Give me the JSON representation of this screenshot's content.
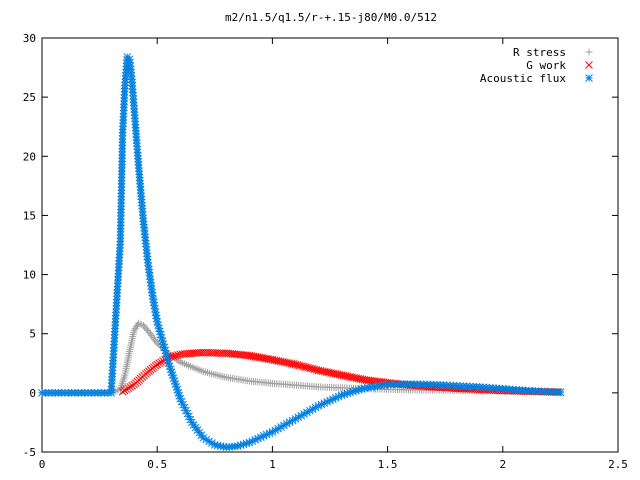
{
  "chart_data": {
    "type": "scatter",
    "title": "m2/n1.5/q1.5/r-+.15-j80/M0.0/512",
    "xlabel": "",
    "ylabel": "",
    "xlim": [
      0,
      2.5
    ],
    "ylim": [
      -5,
      30
    ],
    "x_ticks": [
      "0",
      "0.5",
      "1",
      "1.5",
      "2",
      "2.5"
    ],
    "y_ticks": [
      "-5",
      "0",
      "5",
      "10",
      "15",
      "20",
      "25",
      "30"
    ],
    "x_tick_values": [
      0,
      0.5,
      1,
      1.5,
      2,
      2.5
    ],
    "y_tick_values": [
      -5,
      0,
      5,
      10,
      15,
      20,
      25,
      30
    ],
    "grid": false,
    "legend_position": "top-right",
    "series": [
      {
        "name": "R stress",
        "marker": "plus",
        "color": "#a0a0a0",
        "x": [
          0,
          0.1,
          0.2,
          0.3,
          0.34,
          0.36,
          0.38,
          0.4,
          0.42,
          0.44,
          0.47,
          0.5,
          0.55,
          0.6,
          0.7,
          0.8,
          0.9,
          1.0,
          1.2,
          1.4,
          1.6,
          1.8,
          2.0,
          2.25
        ],
        "y": [
          0,
          0,
          0,
          0,
          0.3,
          1.5,
          3.5,
          5.3,
          5.9,
          5.7,
          5.0,
          4.2,
          3.3,
          2.6,
          1.8,
          1.3,
          1.0,
          0.8,
          0.5,
          0.35,
          0.25,
          0.2,
          0.15,
          0.1
        ]
      },
      {
        "name": "G work",
        "marker": "cross",
        "color": "#ff0000",
        "x": [
          0.35,
          0.4,
          0.45,
          0.5,
          0.55,
          0.6,
          0.65,
          0.7,
          0.8,
          0.9,
          1.0,
          1.1,
          1.2,
          1.3,
          1.4,
          1.5,
          1.6,
          1.7,
          1.8,
          1.9,
          2.0,
          2.1,
          2.25
        ],
        "y": [
          0.1,
          0.7,
          1.6,
          2.4,
          3.0,
          3.25,
          3.35,
          3.4,
          3.35,
          3.15,
          2.8,
          2.4,
          1.9,
          1.5,
          1.1,
          0.85,
          0.65,
          0.5,
          0.38,
          0.28,
          0.2,
          0.13,
          0.05
        ]
      },
      {
        "name": "Acoustic flux",
        "marker": "star",
        "color": "#0080e0",
        "x": [
          0,
          0.1,
          0.2,
          0.3,
          0.34,
          0.35,
          0.36,
          0.37,
          0.38,
          0.39,
          0.4,
          0.42,
          0.44,
          0.46,
          0.48,
          0.5,
          0.55,
          0.6,
          0.65,
          0.7,
          0.75,
          0.8,
          0.85,
          0.9,
          1.0,
          1.1,
          1.2,
          1.3,
          1.4,
          1.5,
          1.6,
          1.7,
          1.8,
          1.9,
          2.0,
          2.1,
          2.25
        ],
        "y": [
          0,
          0,
          0,
          0,
          12.8,
          22.0,
          26.0,
          28.4,
          28.2,
          26.5,
          24.0,
          19.0,
          14.5,
          11.0,
          8.2,
          6.0,
          2.5,
          -0.5,
          -2.5,
          -3.8,
          -4.4,
          -4.6,
          -4.5,
          -4.2,
          -3.3,
          -2.2,
          -1.1,
          -0.2,
          0.4,
          0.7,
          0.75,
          0.7,
          0.6,
          0.5,
          0.35,
          0.2,
          0.05
        ]
      }
    ]
  }
}
